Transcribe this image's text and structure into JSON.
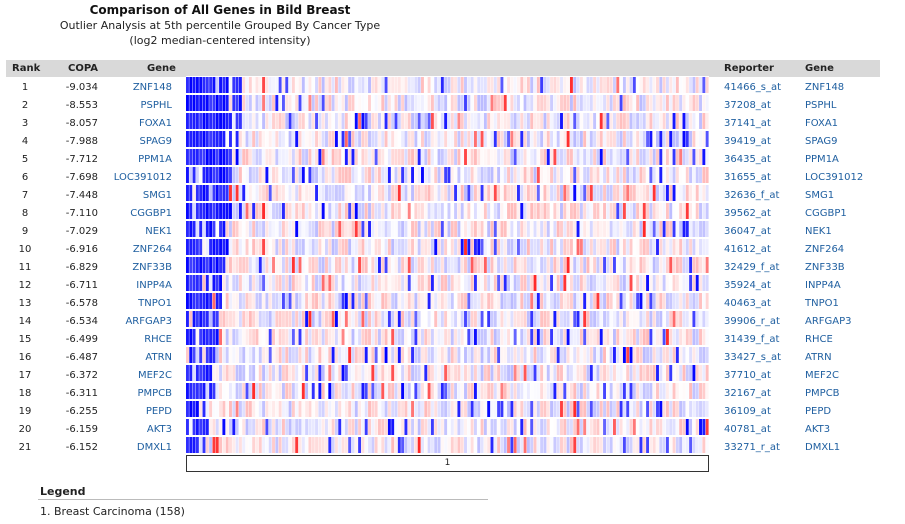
{
  "title": "Comparison of All Genes in Bild Breast",
  "subtitle": "Outlier Analysis at 5th percentile Grouped By Cancer Type",
  "subtitle2": "(log2 median-centered intensity)",
  "headers": {
    "rank": "Rank",
    "copa": "COPA",
    "gene": "Gene",
    "reporter": "Reporter",
    "gene2": "Gene"
  },
  "rows": [
    {
      "rank": "1",
      "copa": "-9.034",
      "gene": "ZNF148",
      "reporter": "41466_s_at"
    },
    {
      "rank": "2",
      "copa": "-8.553",
      "gene": "PSPHL",
      "reporter": "37208_at"
    },
    {
      "rank": "3",
      "copa": "-8.057",
      "gene": "FOXA1",
      "reporter": "37141_at"
    },
    {
      "rank": "4",
      "copa": "-7.988",
      "gene": "SPAG9",
      "reporter": "39419_at"
    },
    {
      "rank": "5",
      "copa": "-7.712",
      "gene": "PPM1A",
      "reporter": "36435_at"
    },
    {
      "rank": "6",
      "copa": "-7.698",
      "gene": "LOC391012",
      "reporter": "31655_at"
    },
    {
      "rank": "7",
      "copa": "-7.448",
      "gene": "SMG1",
      "reporter": "32636_f_at"
    },
    {
      "rank": "8",
      "copa": "-7.110",
      "gene": "CGGBP1",
      "reporter": "39562_at"
    },
    {
      "rank": "9",
      "copa": "-7.029",
      "gene": "NEK1",
      "reporter": "36047_at"
    },
    {
      "rank": "10",
      "copa": "-6.916",
      "gene": "ZNF264",
      "reporter": "41612_at"
    },
    {
      "rank": "11",
      "copa": "-6.829",
      "gene": "ZNF33B",
      "reporter": "32429_f_at"
    },
    {
      "rank": "12",
      "copa": "-6.711",
      "gene": "INPP4A",
      "reporter": "35924_at"
    },
    {
      "rank": "13",
      "copa": "-6.578",
      "gene": "TNPO1",
      "reporter": "40463_at"
    },
    {
      "rank": "14",
      "copa": "-6.534",
      "gene": "ARFGAP3",
      "reporter": "39906_r_at"
    },
    {
      "rank": "15",
      "copa": "-6.499",
      "gene": "RHCE",
      "reporter": "31439_f_at"
    },
    {
      "rank": "16",
      "copa": "-6.487",
      "gene": "ATRN",
      "reporter": "33427_s_at"
    },
    {
      "rank": "17",
      "copa": "-6.372",
      "gene": "MEF2C",
      "reporter": "37710_at"
    },
    {
      "rank": "18",
      "copa": "-6.311",
      "gene": "PMPCB",
      "reporter": "32167_at"
    },
    {
      "rank": "19",
      "copa": "-6.255",
      "gene": "PEPD",
      "reporter": "36109_at"
    },
    {
      "rank": "20",
      "copa": "-6.159",
      "gene": "AKT3",
      "reporter": "40781_at"
    },
    {
      "rank": "21",
      "copa": "-6.152",
      "gene": "DMXL1",
      "reporter": "33271_r_at"
    }
  ],
  "heatmap": {
    "columns": 158,
    "colors": {
      "low": "#0000ff",
      "mid": "#ffffff",
      "high": "#ff0000"
    }
  },
  "group_label": "1",
  "legend": {
    "title": "Legend",
    "items": [
      "1. Breast Carcinoma (158)"
    ]
  }
}
